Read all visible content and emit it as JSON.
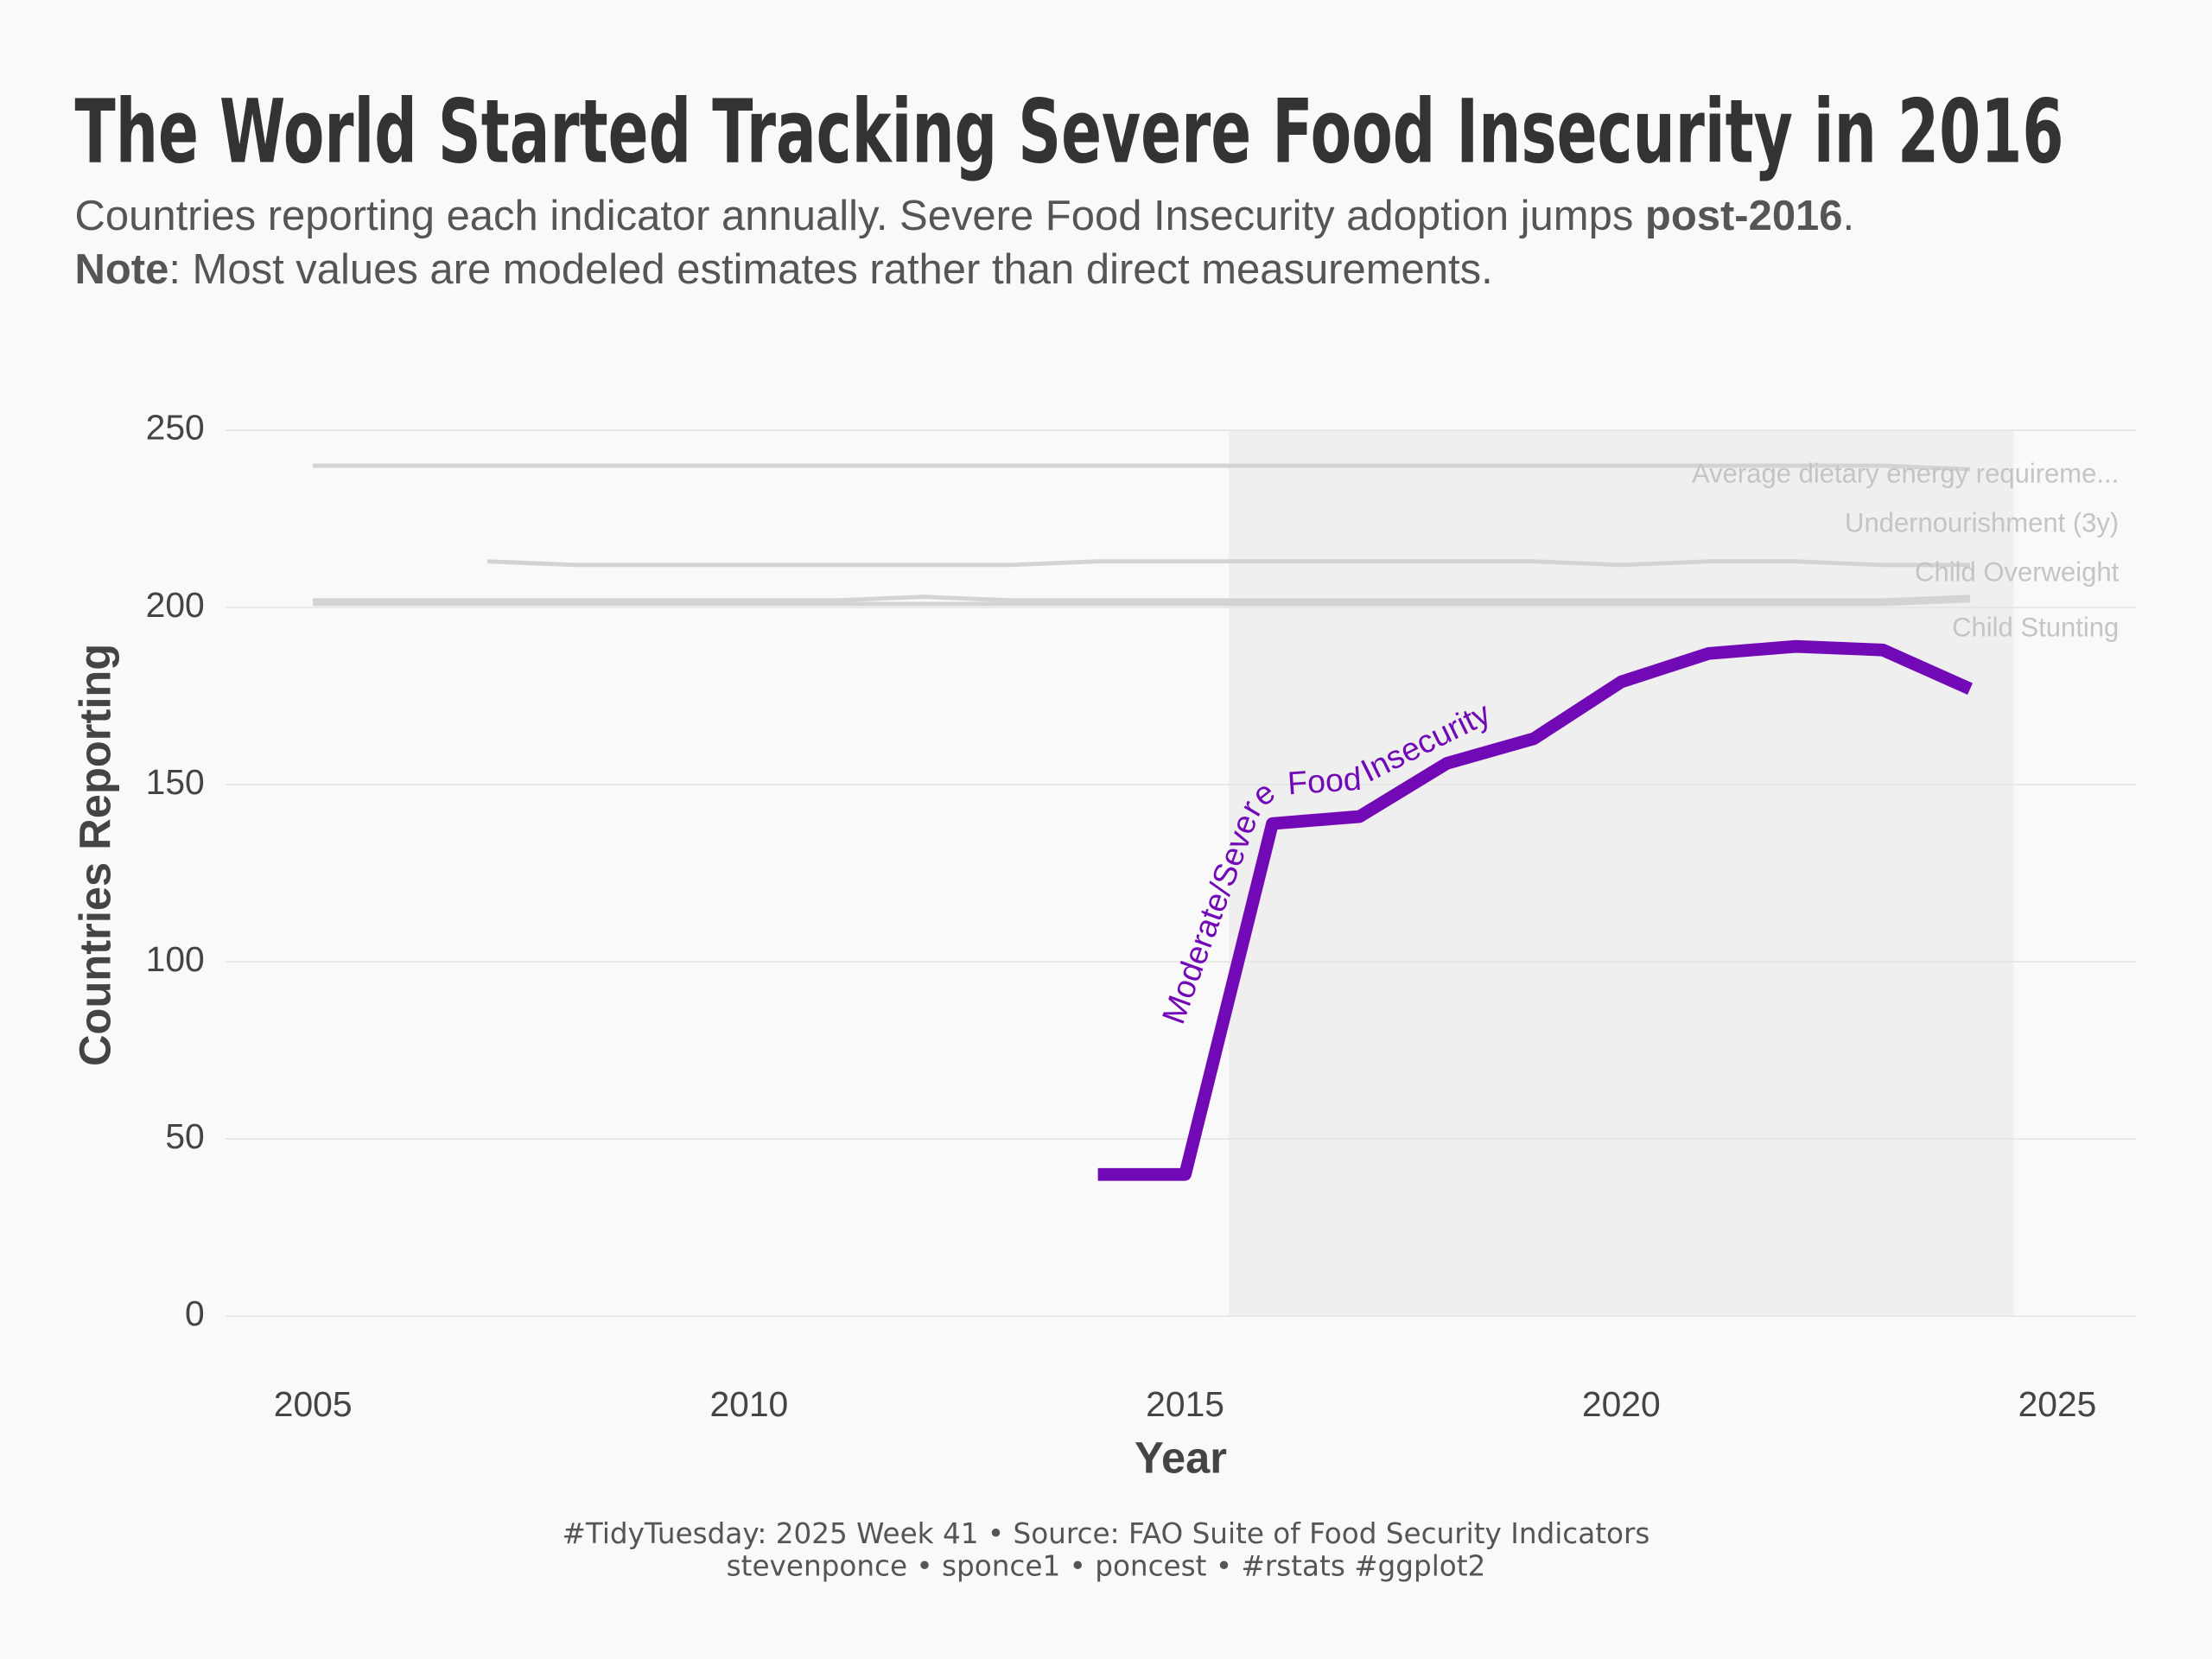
{
  "chart_data": {
    "type": "line",
    "title": "The World Started Tracking Severe Food Insecurity in 2016",
    "subtitle_line1": "Countries reporting each indicator annually. Severe Food Insecurity adoption jumps ",
    "subtitle_line1_bold": "post-2016",
    "subtitle_line1_end": ".",
    "subtitle_line2_bold": "Note",
    "subtitle_line2": ": Most values are modeled estimates rather than direct measurements.",
    "x_label": "Year",
    "y_label": "Countries Reporting",
    "caption_line1": "#TidyTuesday: 2025 Week 41 • Source: FAO Suite of Food Security Indicators",
    "caption_line2": "stevenponce • sponce1 • poncest • #rstats #ggplot2",
    "x": [
      2005,
      2006,
      2007,
      2008,
      2009,
      2010,
      2011,
      2012,
      2013,
      2014,
      2015,
      2016,
      2017,
      2018,
      2019,
      2020,
      2021,
      2022,
      2023,
      2024
    ],
    "series": [
      {
        "name": "Average dietary energy requireme...",
        "color": "#d3d3d3",
        "values": [
          240,
          240,
          240,
          240,
          240,
          240,
          240,
          240,
          240,
          240,
          240,
          240,
          240,
          240,
          240,
          240,
          240,
          240,
          240,
          239
        ]
      },
      {
        "name": "Undernourishment (3y)",
        "color": "#d3d3d3",
        "values": [
          null,
          null,
          213,
          212,
          212,
          212,
          212,
          212,
          212,
          213,
          213,
          213,
          213,
          213,
          213,
          212,
          213,
          213,
          212,
          212
        ]
      },
      {
        "name": "Child Overweight",
        "color": "#d3d3d3",
        "values": [
          202,
          202,
          202,
          202,
          202,
          202,
          202,
          203,
          202,
          202,
          202,
          202,
          202,
          202,
          202,
          202,
          202,
          202,
          202,
          203
        ]
      },
      {
        "name": "Child Stunting",
        "color": "#d3d3d3",
        "values": [
          201,
          201,
          201,
          201,
          201,
          201,
          201,
          201,
          201,
          201,
          201,
          201,
          201,
          201,
          201,
          201,
          201,
          201,
          201,
          202
        ]
      },
      {
        "name": "Moderate/Severe Food Insecurity",
        "color": "#7209b7",
        "values": [
          null,
          null,
          null,
          null,
          null,
          null,
          null,
          null,
          null,
          40,
          40,
          139,
          141,
          156,
          163,
          179,
          187,
          189,
          188,
          177
        ]
      }
    ],
    "shade_x": [
      2015.5,
      2024.5
    ],
    "xlim": [
      2004,
      2025.9
    ],
    "ylim": [
      0,
      250
    ],
    "xticks": [
      2005,
      2010,
      2015,
      2020,
      2025
    ],
    "yticks": [
      0,
      50,
      100,
      150,
      200,
      250
    ],
    "grid": true
  }
}
